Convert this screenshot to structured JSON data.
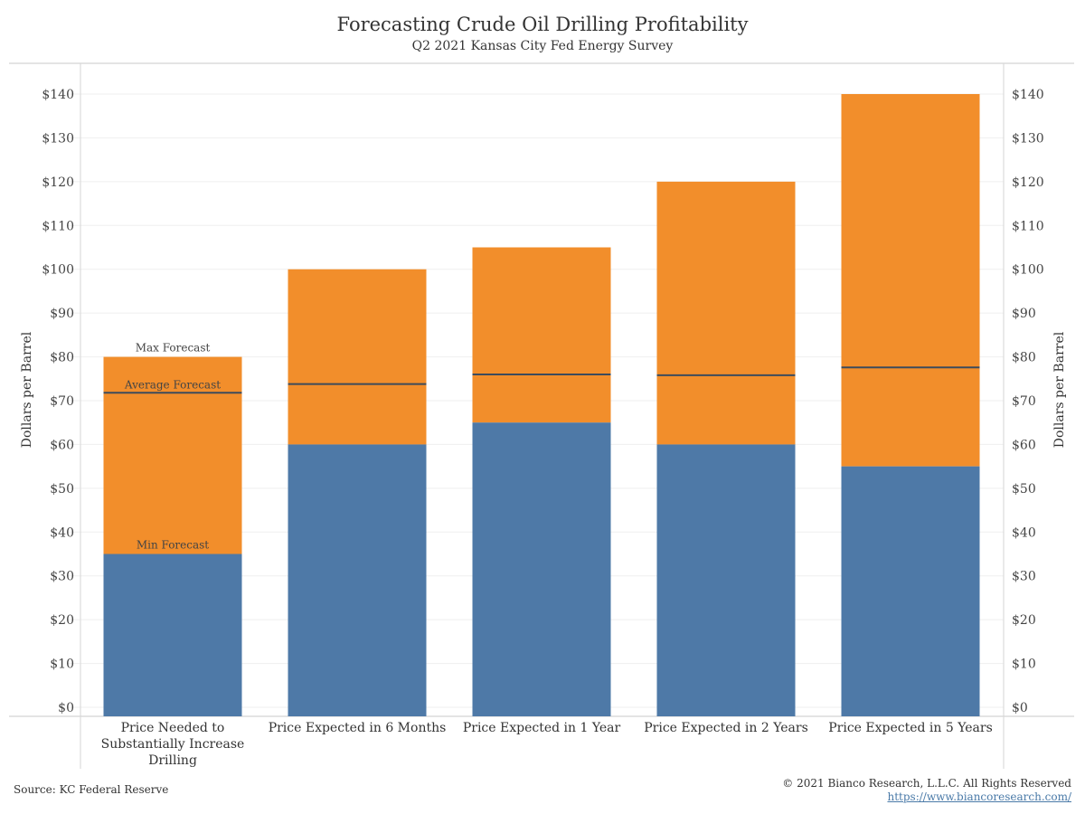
{
  "chart_data": {
    "type": "bar",
    "title": "Forecasting Crude Oil Drilling Profitability",
    "subtitle": "Q2 2021 Kansas City Fed Energy Survey",
    "ylabel": "Dollars per Barrel",
    "ylabel_right": "Dollars per Barrel",
    "ylim": [
      0,
      140
    ],
    "y_ticks": [
      "$0",
      "$10",
      "$20",
      "$30",
      "$40",
      "$50",
      "$60",
      "$70",
      "$80",
      "$90",
      "$100",
      "$110",
      "$120",
      "$130",
      "$140"
    ],
    "categories": [
      [
        "Price Needed to",
        "Substantially Increase",
        "Drilling"
      ],
      [
        "Price Expected in 6 Months"
      ],
      [
        "Price Expected in 1 Year"
      ],
      [
        "Price Expected in 2 Years"
      ],
      [
        "Price Expected in 5 Years"
      ]
    ],
    "series": [
      {
        "name": "Min Forecast",
        "values": [
          35,
          60,
          65,
          60,
          55
        ],
        "color": "#4e79a7"
      },
      {
        "name": "Max Forecast",
        "values": [
          80,
          100,
          105,
          120,
          140
        ],
        "color": "#f28e2b"
      },
      {
        "name": "Average Forecast",
        "values": [
          71.8,
          73.8,
          76.0,
          75.8,
          77.6
        ],
        "color": "#3d4b5c"
      }
    ],
    "annotations": [
      "Max Forecast",
      "Average Forecast",
      "Min Forecast"
    ],
    "grid": true
  },
  "footer": {
    "source": "Source: KC Federal Reserve",
    "copyright": "© 2021 Bianco Research, L.L.C. All Rights Reserved",
    "url": "https://www.biancoresearch.com/"
  }
}
